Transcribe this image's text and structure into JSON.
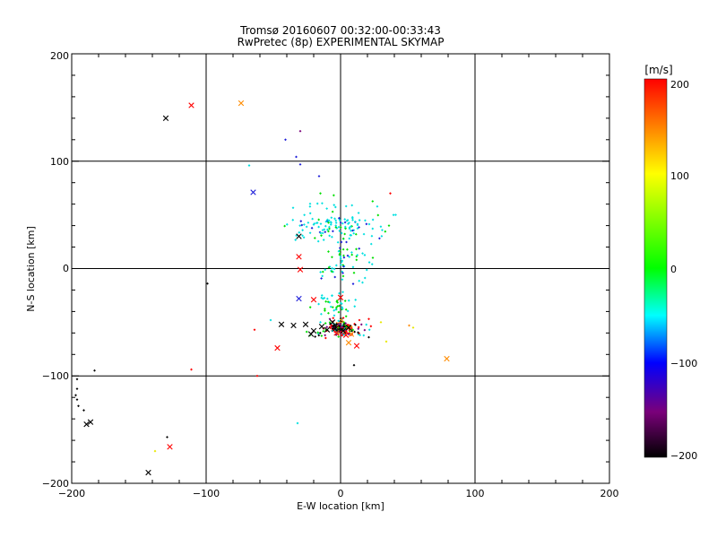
{
  "chart_data": {
    "type": "scatter",
    "title": "Tromsø 20160607 00:32:00-00:33:43",
    "subtitle": "RwPretec (8p) EXPERIMENTAL SKYMAP",
    "xlabel": "E-W location [km]",
    "ylabel": "N-S location [km]",
    "xlim": [
      -200,
      200
    ],
    "ylim": [
      -200,
      200
    ],
    "xticks": [
      "−200",
      "−100",
      "0",
      "100",
      "200"
    ],
    "yticks": [
      "−200",
      "−100",
      "0",
      "100",
      "200"
    ],
    "grid": true,
    "colorbar": {
      "label": "[m/s]",
      "range": [
        -200,
        200
      ],
      "ticks": [
        "200",
        "100",
        "0",
        "−100",
        "−200"
      ]
    },
    "colors": {
      "black": "#000000",
      "purple": "#7a007a",
      "blue": "#1f1fd9",
      "cyan": "#00e0e0",
      "green": "#00e000",
      "yellow": "#e8e800",
      "orange": "#ff8c00",
      "red": "#ff0000"
    },
    "x_markers": [
      {
        "x": -130,
        "y": 140,
        "c": "black"
      },
      {
        "x": -111,
        "y": 152,
        "c": "red"
      },
      {
        "x": -74,
        "y": 154,
        "c": "orange"
      },
      {
        "x": -65,
        "y": 71,
        "c": "blue"
      },
      {
        "x": -31,
        "y": 30,
        "c": "black"
      },
      {
        "x": -31,
        "y": 11,
        "c": "red"
      },
      {
        "x": -30,
        "y": -1,
        "c": "red"
      },
      {
        "x": -31,
        "y": -28,
        "c": "blue"
      },
      {
        "x": -20,
        "y": -29,
        "c": "red"
      },
      {
        "x": 0,
        "y": -27,
        "c": "red"
      },
      {
        "x": -44,
        "y": -52,
        "c": "black"
      },
      {
        "x": -35,
        "y": -53,
        "c": "black"
      },
      {
        "x": -26,
        "y": -52,
        "c": "black"
      },
      {
        "x": -20,
        "y": -58,
        "c": "black"
      },
      {
        "x": -22,
        "y": -61,
        "c": "black"
      },
      {
        "x": -14,
        "y": -54,
        "c": "black"
      },
      {
        "x": -10,
        "y": -57,
        "c": "black"
      },
      {
        "x": -6,
        "y": -50,
        "c": "black"
      },
      {
        "x": -4,
        "y": -56,
        "c": "black"
      },
      {
        "x": 2,
        "y": -58,
        "c": "black"
      },
      {
        "x": 6,
        "y": -55,
        "c": "black"
      },
      {
        "x": -3,
        "y": -60,
        "c": "red"
      },
      {
        "x": 4,
        "y": -62,
        "c": "red"
      },
      {
        "x": 8,
        "y": -61,
        "c": "orange"
      },
      {
        "x": 12,
        "y": -72,
        "c": "red"
      },
      {
        "x": 6,
        "y": -69,
        "c": "orange"
      },
      {
        "x": -47,
        "y": -74,
        "c": "red"
      },
      {
        "x": 79,
        "y": -84,
        "c": "orange"
      },
      {
        "x": -189,
        "y": -145,
        "c": "black"
      },
      {
        "x": -186,
        "y": -143,
        "c": "black"
      },
      {
        "x": -127,
        "y": -166,
        "c": "red"
      },
      {
        "x": -143,
        "y": -190,
        "c": "black"
      }
    ],
    "dots": [
      {
        "x": -30,
        "y": 128,
        "c": "purple"
      },
      {
        "x": -41,
        "y": 120,
        "c": "blue"
      },
      {
        "x": -33,
        "y": 104,
        "c": "blue"
      },
      {
        "x": -30,
        "y": 97,
        "c": "blue"
      },
      {
        "x": -68,
        "y": 96,
        "c": "cyan"
      },
      {
        "x": -16,
        "y": 86,
        "c": "blue"
      },
      {
        "x": 37,
        "y": 70,
        "c": "red"
      },
      {
        "x": -99,
        "y": -14,
        "c": "black"
      },
      {
        "x": -64,
        "y": -57,
        "c": "red"
      },
      {
        "x": -52,
        "y": -48,
        "c": "cyan"
      },
      {
        "x": -62,
        "y": -100,
        "c": "red"
      },
      {
        "x": -111,
        "y": -94,
        "c": "red"
      },
      {
        "x": -183,
        "y": -95,
        "c": "black"
      },
      {
        "x": -196,
        "y": -103,
        "c": "black"
      },
      {
        "x": -196,
        "y": -112,
        "c": "black"
      },
      {
        "x": -197,
        "y": -118,
        "c": "black"
      },
      {
        "x": -196,
        "y": -122,
        "c": "black"
      },
      {
        "x": -195,
        "y": -128,
        "c": "black"
      },
      {
        "x": -191,
        "y": -132,
        "c": "black"
      },
      {
        "x": -129,
        "y": -157,
        "c": "black"
      },
      {
        "x": -138,
        "y": -170,
        "c": "yellow"
      },
      {
        "x": -32,
        "y": -144,
        "c": "cyan"
      },
      {
        "x": 51,
        "y": -53,
        "c": "orange"
      },
      {
        "x": 54,
        "y": -55,
        "c": "yellow"
      },
      {
        "x": 34,
        "y": -68,
        "c": "yellow"
      },
      {
        "x": 30,
        "y": -50,
        "c": "yellow"
      },
      {
        "x": 21,
        "y": -64,
        "c": "black"
      },
      {
        "x": 21,
        "y": -47,
        "c": "red"
      },
      {
        "x": 10,
        "y": -90,
        "c": "black"
      },
      {
        "x": 14,
        "y": -48,
        "c": "red"
      },
      {
        "x": -8,
        "y": -47,
        "c": "purple"
      },
      {
        "x": 2,
        "y": -46,
        "c": "red"
      },
      {
        "x": -15,
        "y": -50,
        "c": "cyan"
      },
      {
        "x": 10,
        "y": -4,
        "c": "green"
      },
      {
        "x": 24,
        "y": 10,
        "c": "green"
      },
      {
        "x": 36,
        "y": 40,
        "c": "green"
      },
      {
        "x": 41,
        "y": 50,
        "c": "cyan"
      },
      {
        "x": -15,
        "y": 70,
        "c": "green"
      }
    ],
    "clusters": [
      {
        "cx": 0,
        "cy": 40,
        "sx": 28,
        "sy": 16,
        "n": 140,
        "c": [
          "cyan",
          "cyan",
          "cyan",
          "cyan",
          "green",
          "blue"
        ],
        "seed": 3
      },
      {
        "cx": 2,
        "cy": 5,
        "sx": 15,
        "sy": 15,
        "n": 55,
        "c": [
          "cyan",
          "cyan",
          "cyan",
          "green",
          "blue"
        ],
        "seed": 11
      },
      {
        "cx": -5,
        "cy": -36,
        "sx": 14,
        "sy": 9,
        "n": 45,
        "c": [
          "cyan",
          "green",
          "green",
          "cyan"
        ],
        "seed": 17
      },
      {
        "cx": 0,
        "cy": -55,
        "sx": 7,
        "sy": 5,
        "n": 150,
        "c": [
          "black",
          "black",
          "red",
          "purple",
          "green",
          "cyan",
          "red",
          "orange"
        ],
        "seed": 29
      },
      {
        "cx": 0,
        "cy": -58,
        "sx": 18,
        "sy": 6,
        "n": 50,
        "c": [
          "black",
          "red",
          "green",
          "purple",
          "cyan"
        ],
        "seed": 41
      }
    ]
  }
}
